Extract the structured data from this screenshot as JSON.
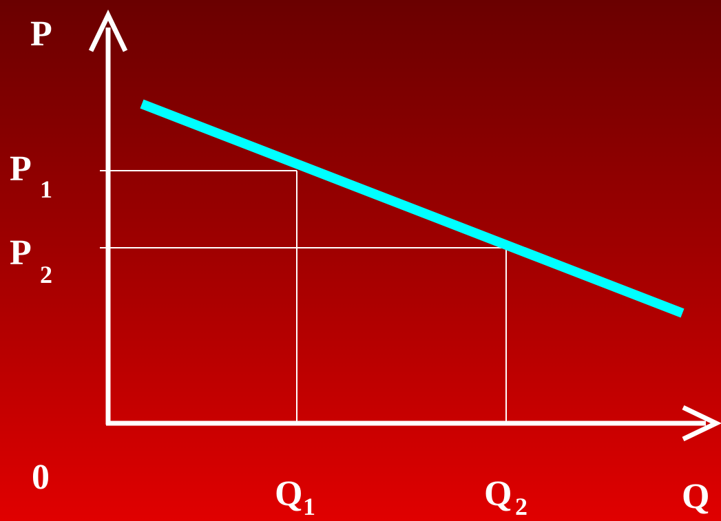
{
  "diagram": {
    "axes": {
      "y_label": "P",
      "x_label": "Q",
      "origin_label": "0"
    },
    "prices": [
      {
        "letter": "P",
        "subscript": "1"
      },
      {
        "letter": "P",
        "subscript": "2"
      }
    ],
    "quantities": [
      {
        "letter": "Q",
        "subscript": "1"
      },
      {
        "letter": "Q",
        "subscript": "2"
      }
    ],
    "colors": {
      "demand_line": "#00ffff",
      "axes": "#ffffff",
      "guides": "#ffffff"
    }
  }
}
